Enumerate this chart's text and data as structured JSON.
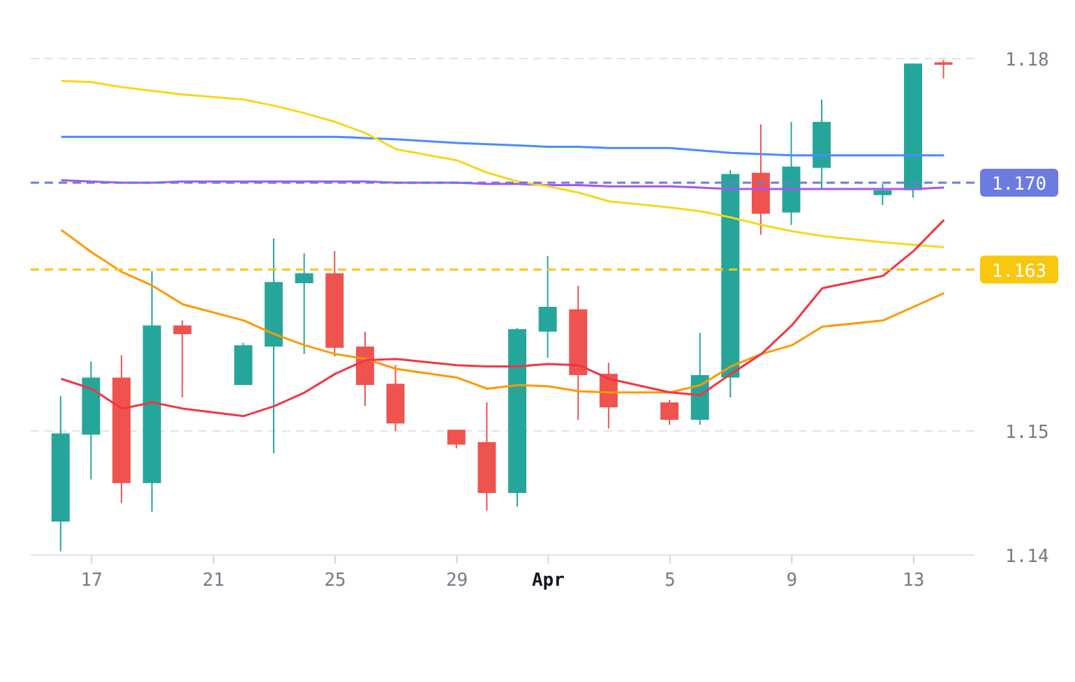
{
  "chart_data": {
    "type": "candlestick",
    "x": [
      "--03-16",
      "--03-17",
      "--03-18",
      "--03-19",
      "--03-20",
      "--03-22",
      "--03-23",
      "--03-24",
      "--03-25",
      "--03-26",
      "--03-27",
      "--03-29",
      "--03-30",
      "--03-31",
      "--04-01",
      "--04-02",
      "--04-03",
      "--04-05",
      "--04-06",
      "--04-07",
      "--04-08",
      "--04-09",
      "--04-10",
      "--04-12",
      "--04-13",
      "--04-14"
    ],
    "ohlc": [
      [
        1.1427,
        1.1528,
        1.1403,
        1.1498
      ],
      [
        1.1497,
        1.1556,
        1.1461,
        1.1543
      ],
      [
        1.1543,
        1.1561,
        1.1442,
        1.1458
      ],
      [
        1.1458,
        1.1629,
        1.1435,
        1.1585
      ],
      [
        1.1585,
        1.1589,
        1.1527,
        1.1578
      ],
      [
        1.1537,
        1.1571,
        1.1537,
        1.1569
      ],
      [
        1.1568,
        1.1655,
        1.1482,
        1.162
      ],
      [
        1.1619,
        1.1643,
        1.1562,
        1.1627
      ],
      [
        1.1627,
        1.1645,
        1.156,
        1.1567
      ],
      [
        1.1568,
        1.158,
        1.152,
        1.1537
      ],
      [
        1.1538,
        1.1553,
        1.15,
        1.1506
      ],
      [
        1.1501,
        1.1501,
        1.1486,
        1.1489
      ],
      [
        1.1491,
        1.1523,
        1.1436,
        1.145
      ],
      [
        1.145,
        1.1583,
        1.1439,
        1.1582
      ],
      [
        1.158,
        1.1641,
        1.1559,
        1.16
      ],
      [
        1.1598,
        1.1617,
        1.1509,
        1.1545
      ],
      [
        1.1546,
        1.1555,
        1.1502,
        1.1519
      ],
      [
        1.1523,
        1.1525,
        1.1505,
        1.1509
      ],
      [
        1.1509,
        1.1579,
        1.1505,
        1.1545
      ],
      [
        1.1543,
        1.171,
        1.1527,
        1.1707
      ],
      [
        1.1708,
        1.1747,
        1.1658,
        1.1675
      ],
      [
        1.1676,
        1.1749,
        1.1666,
        1.1713
      ],
      [
        1.1712,
        1.1767,
        1.1695,
        1.1749
      ],
      [
        1.169,
        1.1699,
        1.1682,
        1.1694
      ],
      [
        1.1694,
        1.1796,
        1.1688,
        1.1796
      ],
      [
        1.1797,
        1.1799,
        1.1784,
        1.1795
      ]
    ],
    "colors": [
      "#26a69a",
      "#26a69a",
      "#ef5350",
      "#26a69a",
      "#ef5350",
      "#26a69a",
      "#26a69a",
      "#26a69a",
      "#ef5350",
      "#ef5350",
      "#ef5350",
      "#ef5350",
      "#ef5350",
      "#26a69a",
      "#26a69a",
      "#ef5350",
      "#ef5350",
      "#ef5350",
      "#26a69a",
      "#26a69a",
      "#ef5350",
      "#26a69a",
      "#26a69a",
      "#26a69a",
      "#26a69a",
      "#ef5350"
    ],
    "series": [
      {
        "type": "line",
        "color": "#4a8cff",
        "values": [
          1.1737,
          1.1737,
          1.1737,
          1.1737,
          1.1737,
          1.1737,
          1.1737,
          1.1737,
          1.1737,
          1.1736,
          1.1735,
          1.1732,
          1.1731,
          1.173,
          1.1729,
          1.1729,
          1.1728,
          1.1728,
          1.1726,
          1.1724,
          1.1723,
          1.1722,
          1.1722,
          1.1722,
          1.1722,
          1.1722
        ]
      },
      {
        "type": "line",
        "color": "#a855f7",
        "values": [
          1.1702,
          1.1701,
          1.17,
          1.17,
          1.1701,
          1.1701,
          1.1701,
          1.1701,
          1.1701,
          1.1701,
          1.17,
          1.17,
          1.1699,
          1.1699,
          1.1698,
          1.1698,
          1.1697,
          1.1697,
          1.1696,
          1.1695,
          1.1695,
          1.1695,
          1.1695,
          1.1695,
          1.1695,
          1.1696
        ]
      },
      {
        "type": "line",
        "color": "#f9d71c",
        "values": [
          1.1782,
          1.1781,
          1.1777,
          1.1774,
          1.1771,
          1.1767,
          1.1762,
          1.1756,
          1.1749,
          1.174,
          1.1727,
          1.1718,
          1.1708,
          1.1701,
          1.1697,
          1.1692,
          1.1685,
          1.168,
          1.1677,
          1.1672,
          1.1666,
          1.1661,
          1.1657,
          1.1652,
          1.165,
          1.1648
        ]
      },
      {
        "type": "line",
        "color": "#ff9800",
        "values": [
          1.1662,
          1.1644,
          1.1628,
          1.1617,
          1.1602,
          1.1589,
          1.1578,
          1.1569,
          1.1562,
          1.1558,
          1.155,
          1.1543,
          1.1534,
          1.1537,
          1.1536,
          1.1532,
          1.1531,
          1.1531,
          1.1537,
          1.1552,
          1.1562,
          1.1569,
          1.1584,
          1.1589,
          1.16,
          1.1611
        ]
      },
      {
        "type": "line",
        "color": "#f23645",
        "values": [
          1.1542,
          1.1534,
          1.1518,
          1.1523,
          1.1518,
          1.1512,
          1.152,
          1.1531,
          1.1546,
          1.1557,
          1.1558,
          1.1553,
          1.1552,
          1.1552,
          1.1554,
          1.1553,
          1.1542,
          1.1531,
          1.1529,
          1.1546,
          1.1562,
          1.1585,
          1.1615,
          1.1625,
          1.1645,
          1.167
        ]
      }
    ],
    "xlim": [
      "--03-15",
      "--04-15"
    ],
    "xticks": [
      {
        "value": "--03-17",
        "label": "17"
      },
      {
        "value": "--03-21",
        "label": "21"
      },
      {
        "value": "--03-25",
        "label": "25"
      },
      {
        "value": "--03-29",
        "label": "29"
      },
      {
        "value": "--04-01",
        "label": "Apr"
      },
      {
        "value": "--04-05",
        "label": "5"
      },
      {
        "value": "--04-09",
        "label": "9"
      },
      {
        "value": "--04-13",
        "label": "13"
      }
    ],
    "ylim": [
      1.14,
      1.18
    ],
    "yticks": [
      1.14,
      1.15,
      1.18
    ],
    "ref_lines": [
      {
        "axis": "y",
        "value": 1.17,
        "label": "1.170",
        "color": "#6b7be0",
        "line_style": "dashed"
      },
      {
        "axis": "y",
        "value": 1.163,
        "label": "1.163",
        "color": "#f9c80e",
        "line_style": "dashed"
      }
    ],
    "grid": "y"
  }
}
